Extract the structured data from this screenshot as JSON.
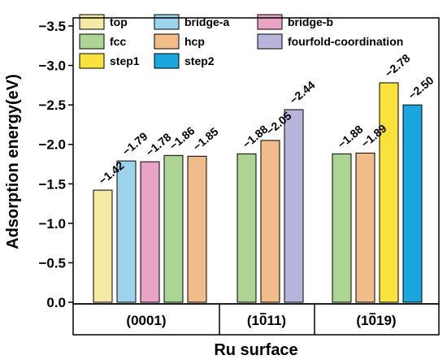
{
  "chart_data": {
    "type": "bar",
    "xlabel": "Ru surface",
    "ylabel": "Adsorption energy(eV)",
    "ylim": [
      0.0,
      -3.75
    ],
    "yticks": [
      "0.0",
      "-0.5",
      "-1.0",
      "-1.5",
      "-2.0",
      "-2.5",
      "-3.0",
      "-3.5"
    ],
    "ytick_values": [
      0.0,
      -0.5,
      -1.0,
      -1.5,
      -2.0,
      -2.5,
      -3.0,
      -3.5
    ],
    "grid": false,
    "legend_position": "top-left",
    "series_colors": {
      "top": "#f5e9a6",
      "bridge-a": "#9ed3ee",
      "bridge-b": "#e9a3c4",
      "fcc": "#acd593",
      "hcp": "#f0bc8a",
      "fourfold-coordination": "#b7b3da",
      "step1": "#f8e23b",
      "step2": "#19a7dd"
    },
    "legend": [
      {
        "name": "top",
        "key": "top"
      },
      {
        "name": "bridge-a",
        "key": "bridge-a"
      },
      {
        "name": "bridge-b",
        "key": "bridge-b"
      },
      {
        "name": "fcc",
        "key": "fcc"
      },
      {
        "name": "hcp",
        "key": "hcp"
      },
      {
        "name": "fourfold-coordination",
        "key": "fourfold-coordination"
      },
      {
        "name": "step1",
        "key": "step1"
      },
      {
        "name": "step2",
        "key": "step2"
      }
    ],
    "groups": [
      {
        "label": "(0001)",
        "bars": [
          {
            "site": "top",
            "value": -1.42,
            "label": "−1.42"
          },
          {
            "site": "bridge-a",
            "value": -1.79,
            "label": "−1.79"
          },
          {
            "site": "bridge-b",
            "value": -1.78,
            "label": "−1.78"
          },
          {
            "site": "fcc",
            "value": -1.86,
            "label": "−1.86"
          },
          {
            "site": "hcp",
            "value": -1.85,
            "label": "−1.85"
          }
        ]
      },
      {
        "label": "(1011)",
        "bars": [
          {
            "site": "fcc",
            "value": -1.88,
            "label": "−1.88"
          },
          {
            "site": "hcp",
            "value": -2.05,
            "label": "−2.05"
          },
          {
            "site": "fourfold-coordination",
            "value": -2.44,
            "label": "−2.44"
          }
        ]
      },
      {
        "label": "(1019)",
        "bars": [
          {
            "site": "fcc",
            "value": -1.88,
            "label": "−1.88"
          },
          {
            "site": "hcp",
            "value": -1.89,
            "label": "−1.89"
          },
          {
            "site": "step1",
            "value": -2.78,
            "label": "−2.78"
          },
          {
            "site": "step2",
            "value": -2.5,
            "label": "−2.50"
          }
        ]
      }
    ]
  }
}
